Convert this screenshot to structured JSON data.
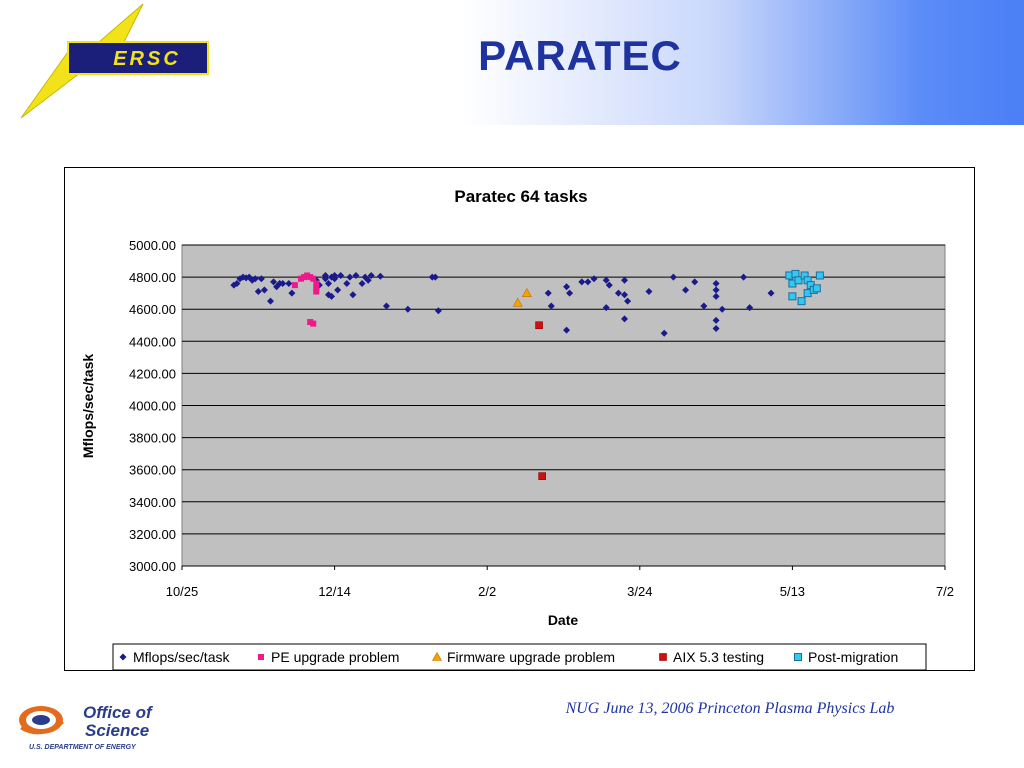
{
  "slide": {
    "title": "PARATEC",
    "footer": "NUG June 13, 2006 Princeton Plasma Physics Lab"
  },
  "logos": {
    "nersc_text": "ERSC",
    "doe_line1": "Office of",
    "doe_line2": "Science",
    "doe_line3": "U.S. DEPARTMENT OF ENERGY"
  },
  "colors": {
    "title": "#1f33a0",
    "plot_bg": "#c0c0c0",
    "mflops": "#1a1a8c",
    "pe_upgrade": "#ee1a8c",
    "firmware": "#f5a200",
    "aix": "#d01010",
    "post_migration": "#33c8f0"
  },
  "chart_data": {
    "type": "scatter",
    "title": "Paratec 64 tasks",
    "xlabel": "Date",
    "ylabel": "Mflops/sec/task",
    "xlim": [
      "2005-10-25",
      "2006-07-02"
    ],
    "x_ticks": [
      "10/25",
      "12/14",
      "2/2",
      "3/24",
      "5/13",
      "7/2"
    ],
    "ylim": [
      3000,
      5000
    ],
    "y_ticks": [
      "3000.00",
      "3200.00",
      "3400.00",
      "3600.00",
      "3800.00",
      "4000.00",
      "4200.00",
      "4400.00",
      "4600.00",
      "4800.00",
      "5000.00"
    ],
    "grid": "horizontal",
    "legend_position": "bottom",
    "series": [
      {
        "name": "Mflops/sec/task",
        "marker": "diamond",
        "color": "#1a1a8c",
        "points": [
          [
            "2005-11-11",
            4750
          ],
          [
            "2005-11-12",
            4760
          ],
          [
            "2005-11-13",
            4790
          ],
          [
            "2005-11-14",
            4800
          ],
          [
            "2005-11-15",
            4795
          ],
          [
            "2005-11-16",
            4800
          ],
          [
            "2005-11-17",
            4780
          ],
          [
            "2005-11-18",
            4790
          ],
          [
            "2005-11-19",
            4710
          ],
          [
            "2005-11-20",
            4790
          ],
          [
            "2005-11-21",
            4720
          ],
          [
            "2005-11-23",
            4650
          ],
          [
            "2005-11-24",
            4770
          ],
          [
            "2005-11-25",
            4740
          ],
          [
            "2005-11-26",
            4760
          ],
          [
            "2005-11-27",
            4760
          ],
          [
            "2005-11-29",
            4760
          ],
          [
            "2005-11-30",
            4700
          ],
          [
            "2005-12-08",
            4780
          ],
          [
            "2005-12-09",
            4750
          ],
          [
            "2005-12-11",
            4790
          ],
          [
            "2005-12-11",
            4810
          ],
          [
            "2005-12-12",
            4690
          ],
          [
            "2005-12-12",
            4760
          ],
          [
            "2005-12-13",
            4800
          ],
          [
            "2005-12-13",
            4680
          ],
          [
            "2005-12-14",
            4810
          ],
          [
            "2005-12-14",
            4790
          ],
          [
            "2005-12-15",
            4720
          ],
          [
            "2005-12-16",
            4810
          ],
          [
            "2005-12-18",
            4760
          ],
          [
            "2005-12-19",
            4800
          ],
          [
            "2005-12-20",
            4690
          ],
          [
            "2005-12-21",
            4810
          ],
          [
            "2005-12-23",
            4760
          ],
          [
            "2005-12-24",
            4800
          ],
          [
            "2005-12-25",
            4780
          ],
          [
            "2005-12-26",
            4810
          ],
          [
            "2005-12-29",
            4805
          ],
          [
            "2005-12-31",
            4620
          ],
          [
            "2006-01-07",
            4600
          ],
          [
            "2006-01-15",
            4800
          ],
          [
            "2006-01-16",
            4800
          ],
          [
            "2006-01-17",
            4590
          ],
          [
            "2006-02-22",
            4700
          ],
          [
            "2006-02-23",
            4620
          ],
          [
            "2006-02-28",
            4470
          ],
          [
            "2006-02-28",
            4740
          ],
          [
            "2006-03-01",
            4700
          ],
          [
            "2006-03-05",
            4770
          ],
          [
            "2006-03-07",
            4770
          ],
          [
            "2006-03-09",
            4790
          ],
          [
            "2006-03-13",
            4780
          ],
          [
            "2006-03-13",
            4610
          ],
          [
            "2006-03-14",
            4750
          ],
          [
            "2006-03-17",
            4700
          ],
          [
            "2006-03-19",
            4780
          ],
          [
            "2006-03-19",
            4540
          ],
          [
            "2006-03-19",
            4690
          ],
          [
            "2006-03-20",
            4650
          ],
          [
            "2006-03-27",
            4710
          ],
          [
            "2006-04-01",
            4450
          ],
          [
            "2006-04-04",
            4800
          ],
          [
            "2006-04-08",
            4720
          ],
          [
            "2006-04-11",
            4770
          ],
          [
            "2006-04-14",
            4620
          ],
          [
            "2006-04-18",
            4760
          ],
          [
            "2006-04-18",
            4720
          ],
          [
            "2006-04-18",
            4680
          ],
          [
            "2006-04-18",
            4530
          ],
          [
            "2006-04-18",
            4480
          ],
          [
            "2006-04-20",
            4600
          ],
          [
            "2006-04-27",
            4800
          ],
          [
            "2006-04-29",
            4610
          ],
          [
            "2006-05-06",
            4700
          ]
        ]
      },
      {
        "name": "PE upgrade problem",
        "marker": "square-small",
        "color": "#ee1a8c",
        "points": [
          [
            "2005-12-01",
            4750
          ],
          [
            "2005-12-03",
            4790
          ],
          [
            "2005-12-04",
            4800
          ],
          [
            "2005-12-05",
            4810
          ],
          [
            "2005-12-06",
            4800
          ],
          [
            "2005-12-07",
            4790
          ],
          [
            "2005-12-08",
            4760
          ],
          [
            "2005-12-08",
            4730
          ],
          [
            "2005-12-08",
            4710
          ],
          [
            "2005-12-06",
            4520
          ],
          [
            "2005-12-07",
            4510
          ]
        ]
      },
      {
        "name": "Firmware upgrade problem",
        "marker": "triangle",
        "color": "#f5a200",
        "points": [
          [
            "2006-02-12",
            4640
          ],
          [
            "2006-02-15",
            4700
          ]
        ]
      },
      {
        "name": "AIX 5.3 testing",
        "marker": "square",
        "color": "#d01010",
        "points": [
          [
            "2006-02-19",
            4500
          ],
          [
            "2006-02-20",
            3560
          ]
        ]
      },
      {
        "name": "Post-migration",
        "marker": "square-open",
        "color": "#33c8f0",
        "points": [
          [
            "2006-05-12",
            4810
          ],
          [
            "2006-05-13",
            4760
          ],
          [
            "2006-05-13",
            4680
          ],
          [
            "2006-05-14",
            4820
          ],
          [
            "2006-05-15",
            4780
          ],
          [
            "2006-05-16",
            4650
          ],
          [
            "2006-05-17",
            4810
          ],
          [
            "2006-05-18",
            4780
          ],
          [
            "2006-05-18",
            4700
          ],
          [
            "2006-05-19",
            4750
          ],
          [
            "2006-05-20",
            4720
          ],
          [
            "2006-05-21",
            4730
          ],
          [
            "2006-05-22",
            4810
          ]
        ]
      }
    ]
  }
}
